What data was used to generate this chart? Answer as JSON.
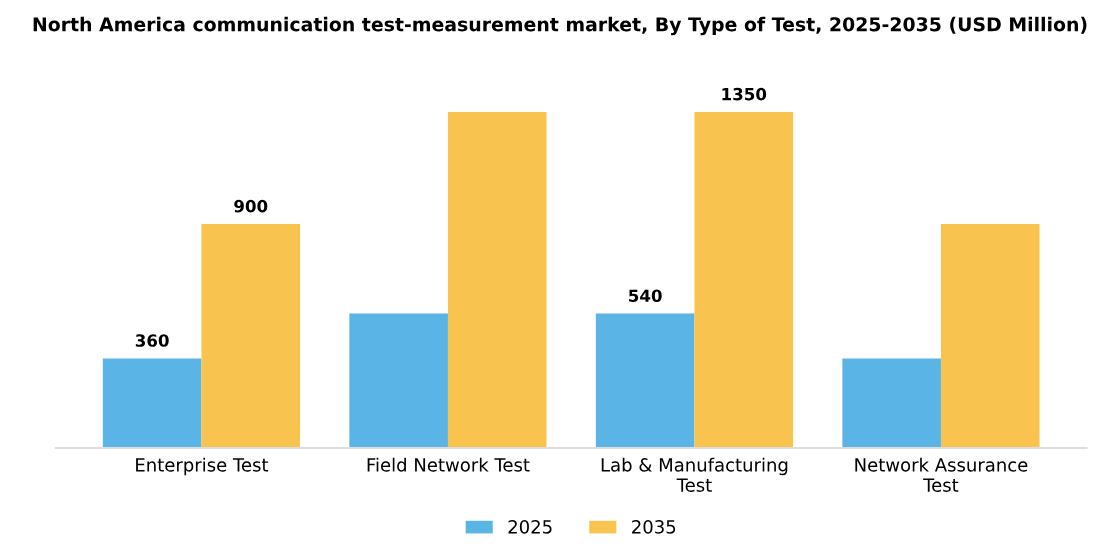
{
  "chart_data": {
    "type": "bar",
    "title": "North America communication test-measurement market, By Type of Test, 2025-2035 (USD Million)",
    "categories": [
      "Enterprise Test",
      "Field Network Test",
      "Lab & Manufacturing\nTest",
      "Network Assurance\nTest"
    ],
    "series": [
      {
        "name": "2025",
        "color": "#5ab4e5",
        "values": [
          360,
          540,
          540,
          360
        ],
        "value_labels": [
          "360",
          null,
          "540",
          null
        ]
      },
      {
        "name": "2035",
        "color": "#f8c44f",
        "values": [
          900,
          1350,
          1350,
          900
        ],
        "value_labels": [
          "900",
          null,
          "1350",
          null
        ]
      }
    ],
    "legend": "bottom",
    "grid": false
  }
}
